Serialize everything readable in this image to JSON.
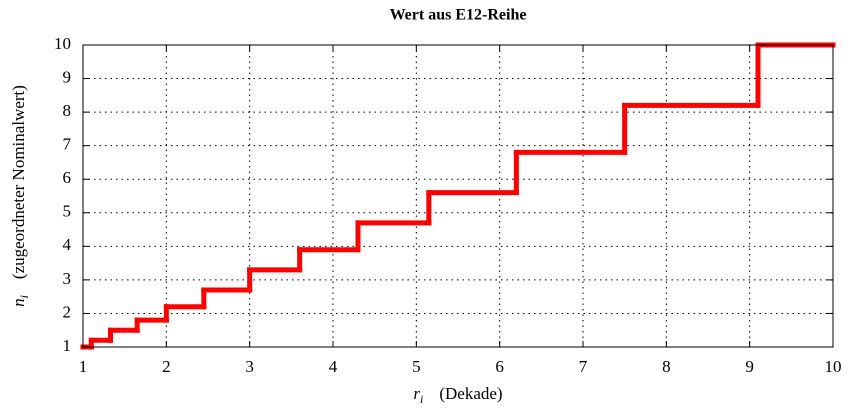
{
  "chart_data": {
    "type": "step",
    "title": "Wert aus E12-Reihe",
    "xlabel": {
      "symbol": "r",
      "subscript": "i",
      "text": "(Dekade)"
    },
    "ylabel": {
      "symbol": "n",
      "subscript": "i",
      "text": "(zugeordneter Nominalwert)"
    },
    "x": [
      1,
      1.1,
      1.33,
      1.65,
      2.0,
      2.45,
      3.0,
      3.6,
      4.3,
      5.15,
      6.2,
      7.5,
      9.1
    ],
    "values": [
      1.0,
      1.2,
      1.5,
      1.8,
      2.2,
      2.7,
      3.3,
      3.9,
      4.7,
      5.6,
      6.8,
      8.2,
      10
    ],
    "color": "#ff0000",
    "xlim": [
      1,
      10
    ],
    "xticks": [
      1,
      2,
      3,
      4,
      5,
      6,
      7,
      8,
      9,
      10
    ],
    "ylim": [
      1,
      10
    ],
    "yticks": [
      1,
      2,
      3,
      4,
      5,
      6,
      7,
      8,
      9,
      10
    ],
    "grid": true
  }
}
